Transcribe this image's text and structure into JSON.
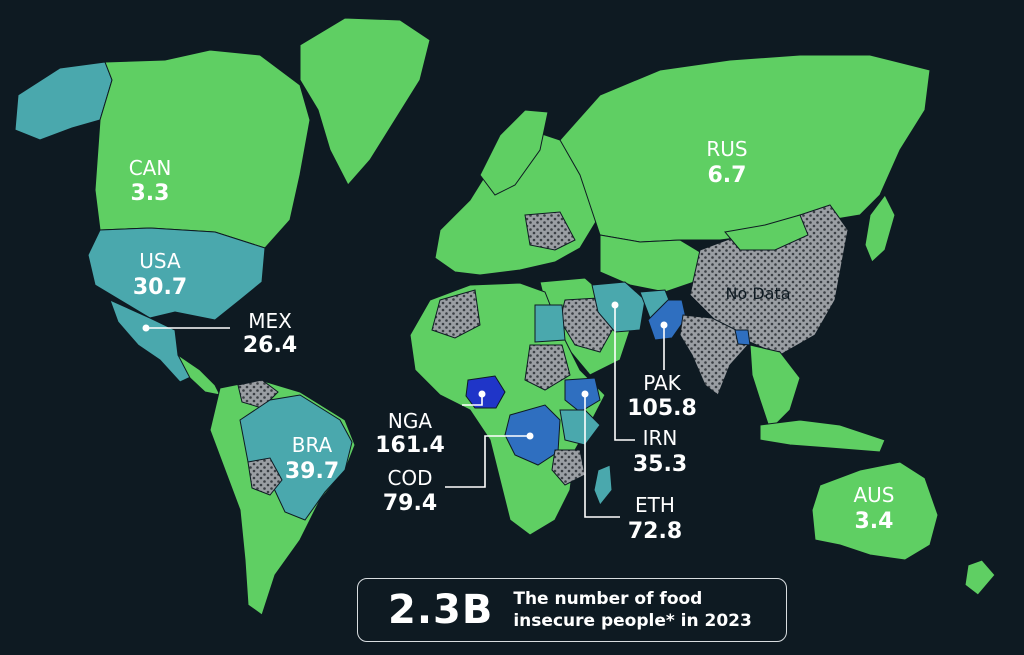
{
  "colors": {
    "background": "#0e1a22",
    "low": "#5fcf63",
    "medium": "#4aa8ad",
    "high": "#2f6fc0",
    "highest": "#1f35c8",
    "no_data": "#9a9ea3"
  },
  "legend": {
    "no_data_label": "No Data"
  },
  "countries": [
    {
      "code": "CAN",
      "value": "3.3"
    },
    {
      "code": "USA",
      "value": "30.7"
    },
    {
      "code": "MEX",
      "value": "26.4"
    },
    {
      "code": "BRA",
      "value": "39.7"
    },
    {
      "code": "RUS",
      "value": "6.7"
    },
    {
      "code": "NGA",
      "value": "161.4"
    },
    {
      "code": "COD",
      "value": "79.4"
    },
    {
      "code": "ETH",
      "value": "72.8"
    },
    {
      "code": "IRN",
      "value": "35.3"
    },
    {
      "code": "PAK",
      "value": "105.8"
    },
    {
      "code": "AUS",
      "value": "3.4"
    }
  ],
  "summary": {
    "headline": "2.3B",
    "caption_line1": "The number of food",
    "caption_line2": "insecure people* in 2023"
  }
}
